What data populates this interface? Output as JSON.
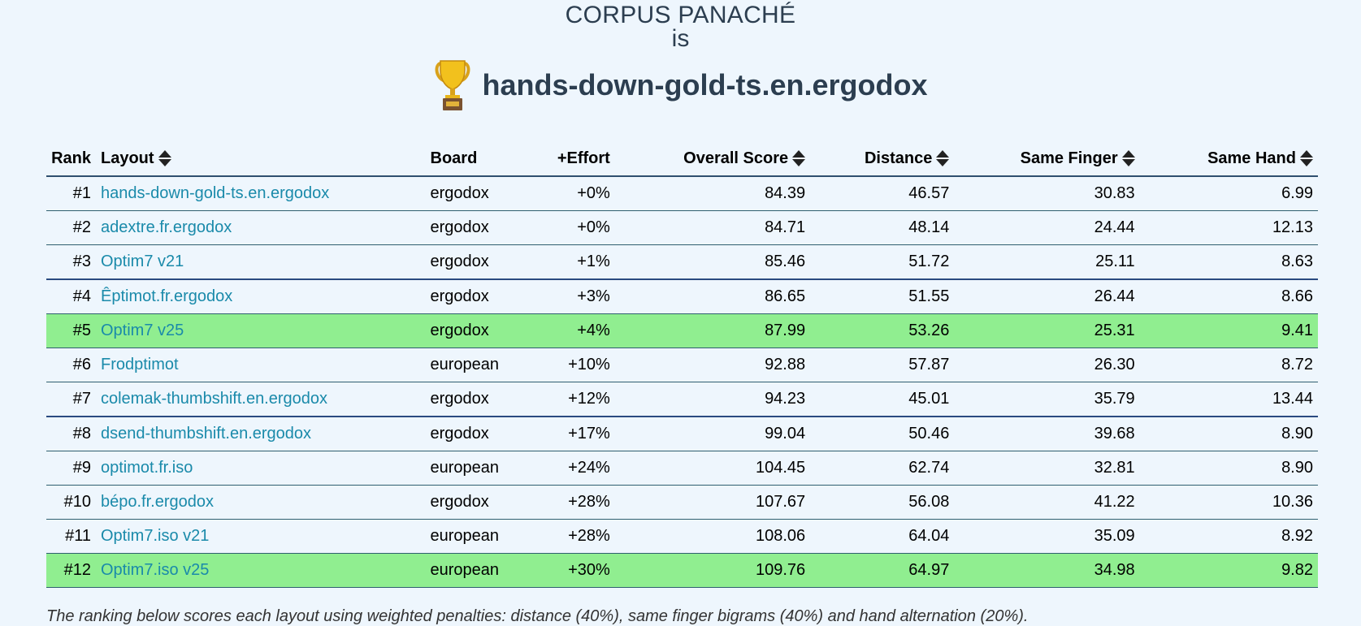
{
  "header": {
    "corpus": "CORPUS PANACHÉ",
    "is": "is",
    "winner": "hands-down-gold-ts.en.ergodox"
  },
  "columns": [
    "Rank",
    "Layout",
    "Board",
    "+Effort",
    "Overall Score",
    "Distance",
    "Same Finger",
    "Same Hand"
  ],
  "rows": [
    {
      "rank": "#1",
      "layout": "hands-down-gold-ts.en.ergodox",
      "board": "ergodox",
      "effort": "+0%",
      "overall": "84.39",
      "distance": "46.57",
      "same_finger": "30.83",
      "same_hand": "6.99"
    },
    {
      "rank": "#2",
      "layout": "adextre.fr.ergodox",
      "board": "ergodox",
      "effort": "+0%",
      "overall": "84.71",
      "distance": "48.14",
      "same_finger": "24.44",
      "same_hand": "12.13"
    },
    {
      "rank": "#3",
      "layout": "Optim7 v21",
      "board": "ergodox",
      "effort": "+1%",
      "overall": "85.46",
      "distance": "51.72",
      "same_finger": "25.11",
      "same_hand": "8.63"
    },
    {
      "rank": "#4",
      "layout": "Êptimot.fr.ergodox",
      "board": "ergodox",
      "effort": "+3%",
      "overall": "86.65",
      "distance": "51.55",
      "same_finger": "26.44",
      "same_hand": "8.66"
    },
    {
      "rank": "#5",
      "layout": "Optim7 v25",
      "board": "ergodox",
      "effort": "+4%",
      "overall": "87.99",
      "distance": "53.26",
      "same_finger": "25.31",
      "same_hand": "9.41"
    },
    {
      "rank": "#6",
      "layout": "Frodptimot",
      "board": "european",
      "effort": "+10%",
      "overall": "92.88",
      "distance": "57.87",
      "same_finger": "26.30",
      "same_hand": "8.72"
    },
    {
      "rank": "#7",
      "layout": "colemak-thumbshift.en.ergodox",
      "board": "ergodox",
      "effort": "+12%",
      "overall": "94.23",
      "distance": "45.01",
      "same_finger": "35.79",
      "same_hand": "13.44"
    },
    {
      "rank": "#8",
      "layout": "dsend-thumbshift.en.ergodox",
      "board": "ergodox",
      "effort": "+17%",
      "overall": "99.04",
      "distance": "50.46",
      "same_finger": "39.68",
      "same_hand": "8.90"
    },
    {
      "rank": "#9",
      "layout": "optimot.fr.iso",
      "board": "european",
      "effort": "+24%",
      "overall": "104.45",
      "distance": "62.74",
      "same_finger": "32.81",
      "same_hand": "8.90"
    },
    {
      "rank": "#10",
      "layout": "bépo.fr.ergodox",
      "board": "ergodox",
      "effort": "+28%",
      "overall": "107.67",
      "distance": "56.08",
      "same_finger": "41.22",
      "same_hand": "10.36"
    },
    {
      "rank": "#11",
      "layout": "Optim7.iso v21",
      "board": "european",
      "effort": "+28%",
      "overall": "108.06",
      "distance": "64.04",
      "same_finger": "35.09",
      "same_hand": "8.92"
    },
    {
      "rank": "#12",
      "layout": "Optim7.iso v25",
      "board": "european",
      "effort": "+30%",
      "overall": "109.76",
      "distance": "64.97",
      "same_finger": "34.98",
      "same_hand": "9.82"
    }
  ],
  "highlight_color": "#90ee90",
  "link_color": "#1a8aaa",
  "footnote": "The ranking below scores each layout using weighted penalties: distance (40%), same finger bigrams (40%) and hand alternation (20%)."
}
